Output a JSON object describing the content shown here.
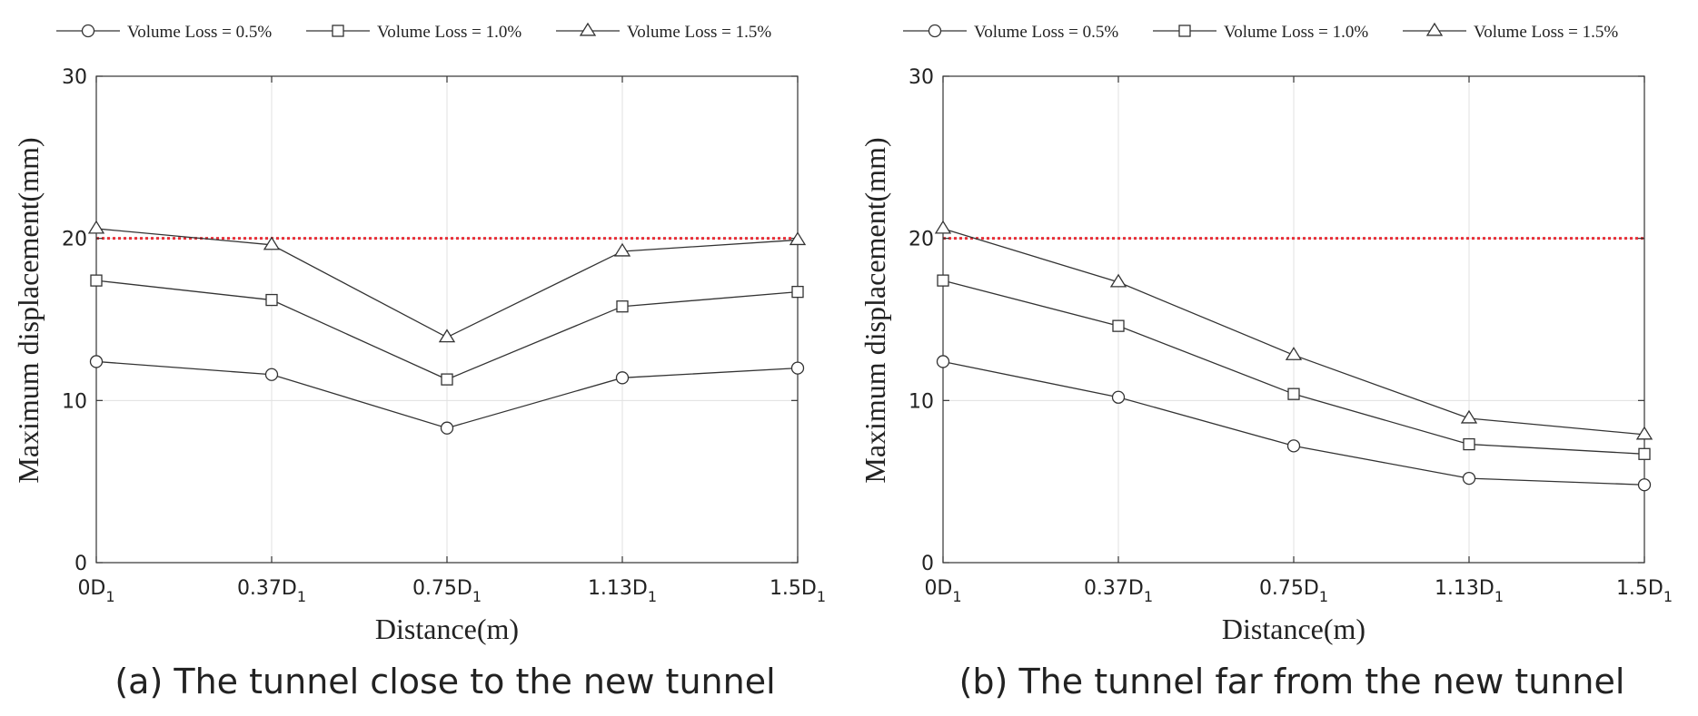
{
  "colors": {
    "series_line": "#333333",
    "axes": "#333333",
    "grid": "#e0e0e0",
    "threshold": "#e8313a",
    "text": "#222222"
  },
  "chart_data": [
    {
      "type": "line",
      "caption": "(a) The tunnel close to the new tunnel",
      "xlabel": "Distance(m)",
      "ylabel": "Maximum displacement(mm)",
      "categories": [
        {
          "base": "0D",
          "sub": "1"
        },
        {
          "base": "0.37D",
          "sub": "1"
        },
        {
          "base": "0.75D",
          "sub": "1"
        },
        {
          "base": "1.13D",
          "sub": "1"
        },
        {
          "base": "1.5D",
          "sub": "1"
        }
      ],
      "ylim": [
        0,
        30
      ],
      "yticks": [
        0,
        10,
        20,
        30
      ],
      "grid": true,
      "legend_position": "top",
      "threshold": 20,
      "series": [
        {
          "name": "Volume Loss = 0.5%",
          "marker": "circle",
          "values": [
            12.4,
            11.6,
            8.3,
            11.4,
            12.0
          ]
        },
        {
          "name": "Volume Loss = 1.0%",
          "marker": "square",
          "values": [
            17.4,
            16.2,
            11.3,
            15.8,
            16.7
          ]
        },
        {
          "name": "Volume Loss = 1.5%",
          "marker": "triangle",
          "values": [
            20.6,
            19.6,
            13.9,
            19.2,
            19.9
          ]
        }
      ]
    },
    {
      "type": "line",
      "caption": "(b) The tunnel far from the new tunnel",
      "xlabel": "Distance(m)",
      "ylabel": "Maximum displacement(mm)",
      "categories": [
        {
          "base": "0D",
          "sub": "1"
        },
        {
          "base": "0.37D",
          "sub": "1"
        },
        {
          "base": "0.75D",
          "sub": "1"
        },
        {
          "base": "1.13D",
          "sub": "1"
        },
        {
          "base": "1.5D",
          "sub": "1"
        }
      ],
      "ylim": [
        0,
        30
      ],
      "yticks": [
        0,
        10,
        20,
        30
      ],
      "grid": true,
      "legend_position": "top",
      "threshold": 20,
      "series": [
        {
          "name": "Volume Loss = 0.5%",
          "marker": "circle",
          "values": [
            12.4,
            10.2,
            7.2,
            5.2,
            4.8
          ]
        },
        {
          "name": "Volume Loss = 1.0%",
          "marker": "square",
          "values": [
            17.4,
            14.6,
            10.4,
            7.3,
            6.7
          ]
        },
        {
          "name": "Volume Loss = 1.5%",
          "marker": "triangle",
          "values": [
            20.6,
            17.3,
            12.8,
            8.9,
            7.9
          ]
        }
      ]
    }
  ]
}
